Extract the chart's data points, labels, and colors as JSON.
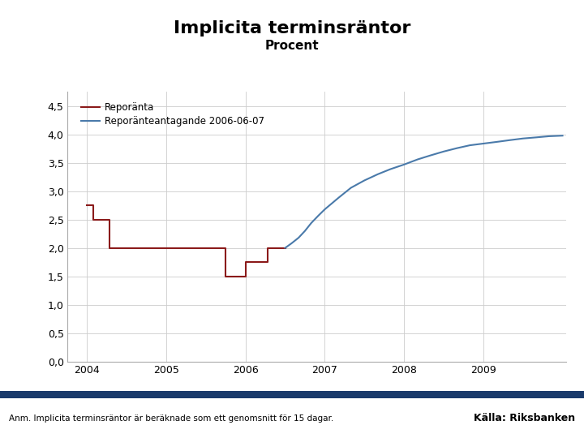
{
  "title": "Implicita terminsräntor",
  "subtitle": "Procent",
  "background_color": "#ffffff",
  "footer_bar_color": "#1a3a6b",
  "footer_text": "Anm. Implicita terminsräntor är beräknade som ett genomsnitt för 15 dagar.",
  "footer_source": "Källa: Riksbanken",
  "ylim": [
    0.0,
    4.75
  ],
  "yticks": [
    0.0,
    0.5,
    1.0,
    1.5,
    2.0,
    2.5,
    3.0,
    3.5,
    4.0,
    4.5
  ],
  "ytick_labels": [
    "0,0",
    "0,5",
    "1,0",
    "1,5",
    "2,0",
    "2,5",
    "3,0",
    "3,5",
    "4,0",
    "4,5"
  ],
  "xlim_start": 2003.75,
  "xlim_end": 2010.05,
  "xticks": [
    2004,
    2005,
    2006,
    2007,
    2008,
    2009
  ],
  "reporanta_color": "#8b1a1a",
  "forward_color": "#4a7aaa",
  "legend_label_reporanta": "Reporänta",
  "legend_label_forward": "Reporänteantagande 2006-06-07",
  "reporanta_x": [
    2004.0,
    2004.08,
    2004.08,
    2004.28,
    2004.28,
    2005.75,
    2005.75,
    2006.0,
    2006.0,
    2006.28,
    2006.28,
    2006.5
  ],
  "reporanta_y": [
    2.75,
    2.75,
    2.5,
    2.5,
    2.0,
    2.0,
    1.5,
    1.5,
    1.75,
    1.75,
    2.0,
    2.0
  ],
  "forward_x": [
    2006.5,
    2006.58,
    2006.67,
    2006.75,
    2006.83,
    2006.92,
    2007.0,
    2007.17,
    2007.33,
    2007.5,
    2007.67,
    2007.83,
    2008.0,
    2008.17,
    2008.33,
    2008.5,
    2008.67,
    2008.83,
    2009.0,
    2009.17,
    2009.33,
    2009.5,
    2009.67,
    2009.83,
    2010.0
  ],
  "forward_y": [
    2.0,
    2.08,
    2.18,
    2.3,
    2.44,
    2.57,
    2.68,
    2.88,
    3.06,
    3.19,
    3.3,
    3.39,
    3.47,
    3.56,
    3.63,
    3.7,
    3.76,
    3.81,
    3.84,
    3.87,
    3.9,
    3.93,
    3.95,
    3.97,
    3.98
  ],
  "grid_color": "#cccccc",
  "title_fontsize": 16,
  "subtitle_fontsize": 11,
  "axis_fontsize": 9,
  "legend_fontsize": 8.5
}
